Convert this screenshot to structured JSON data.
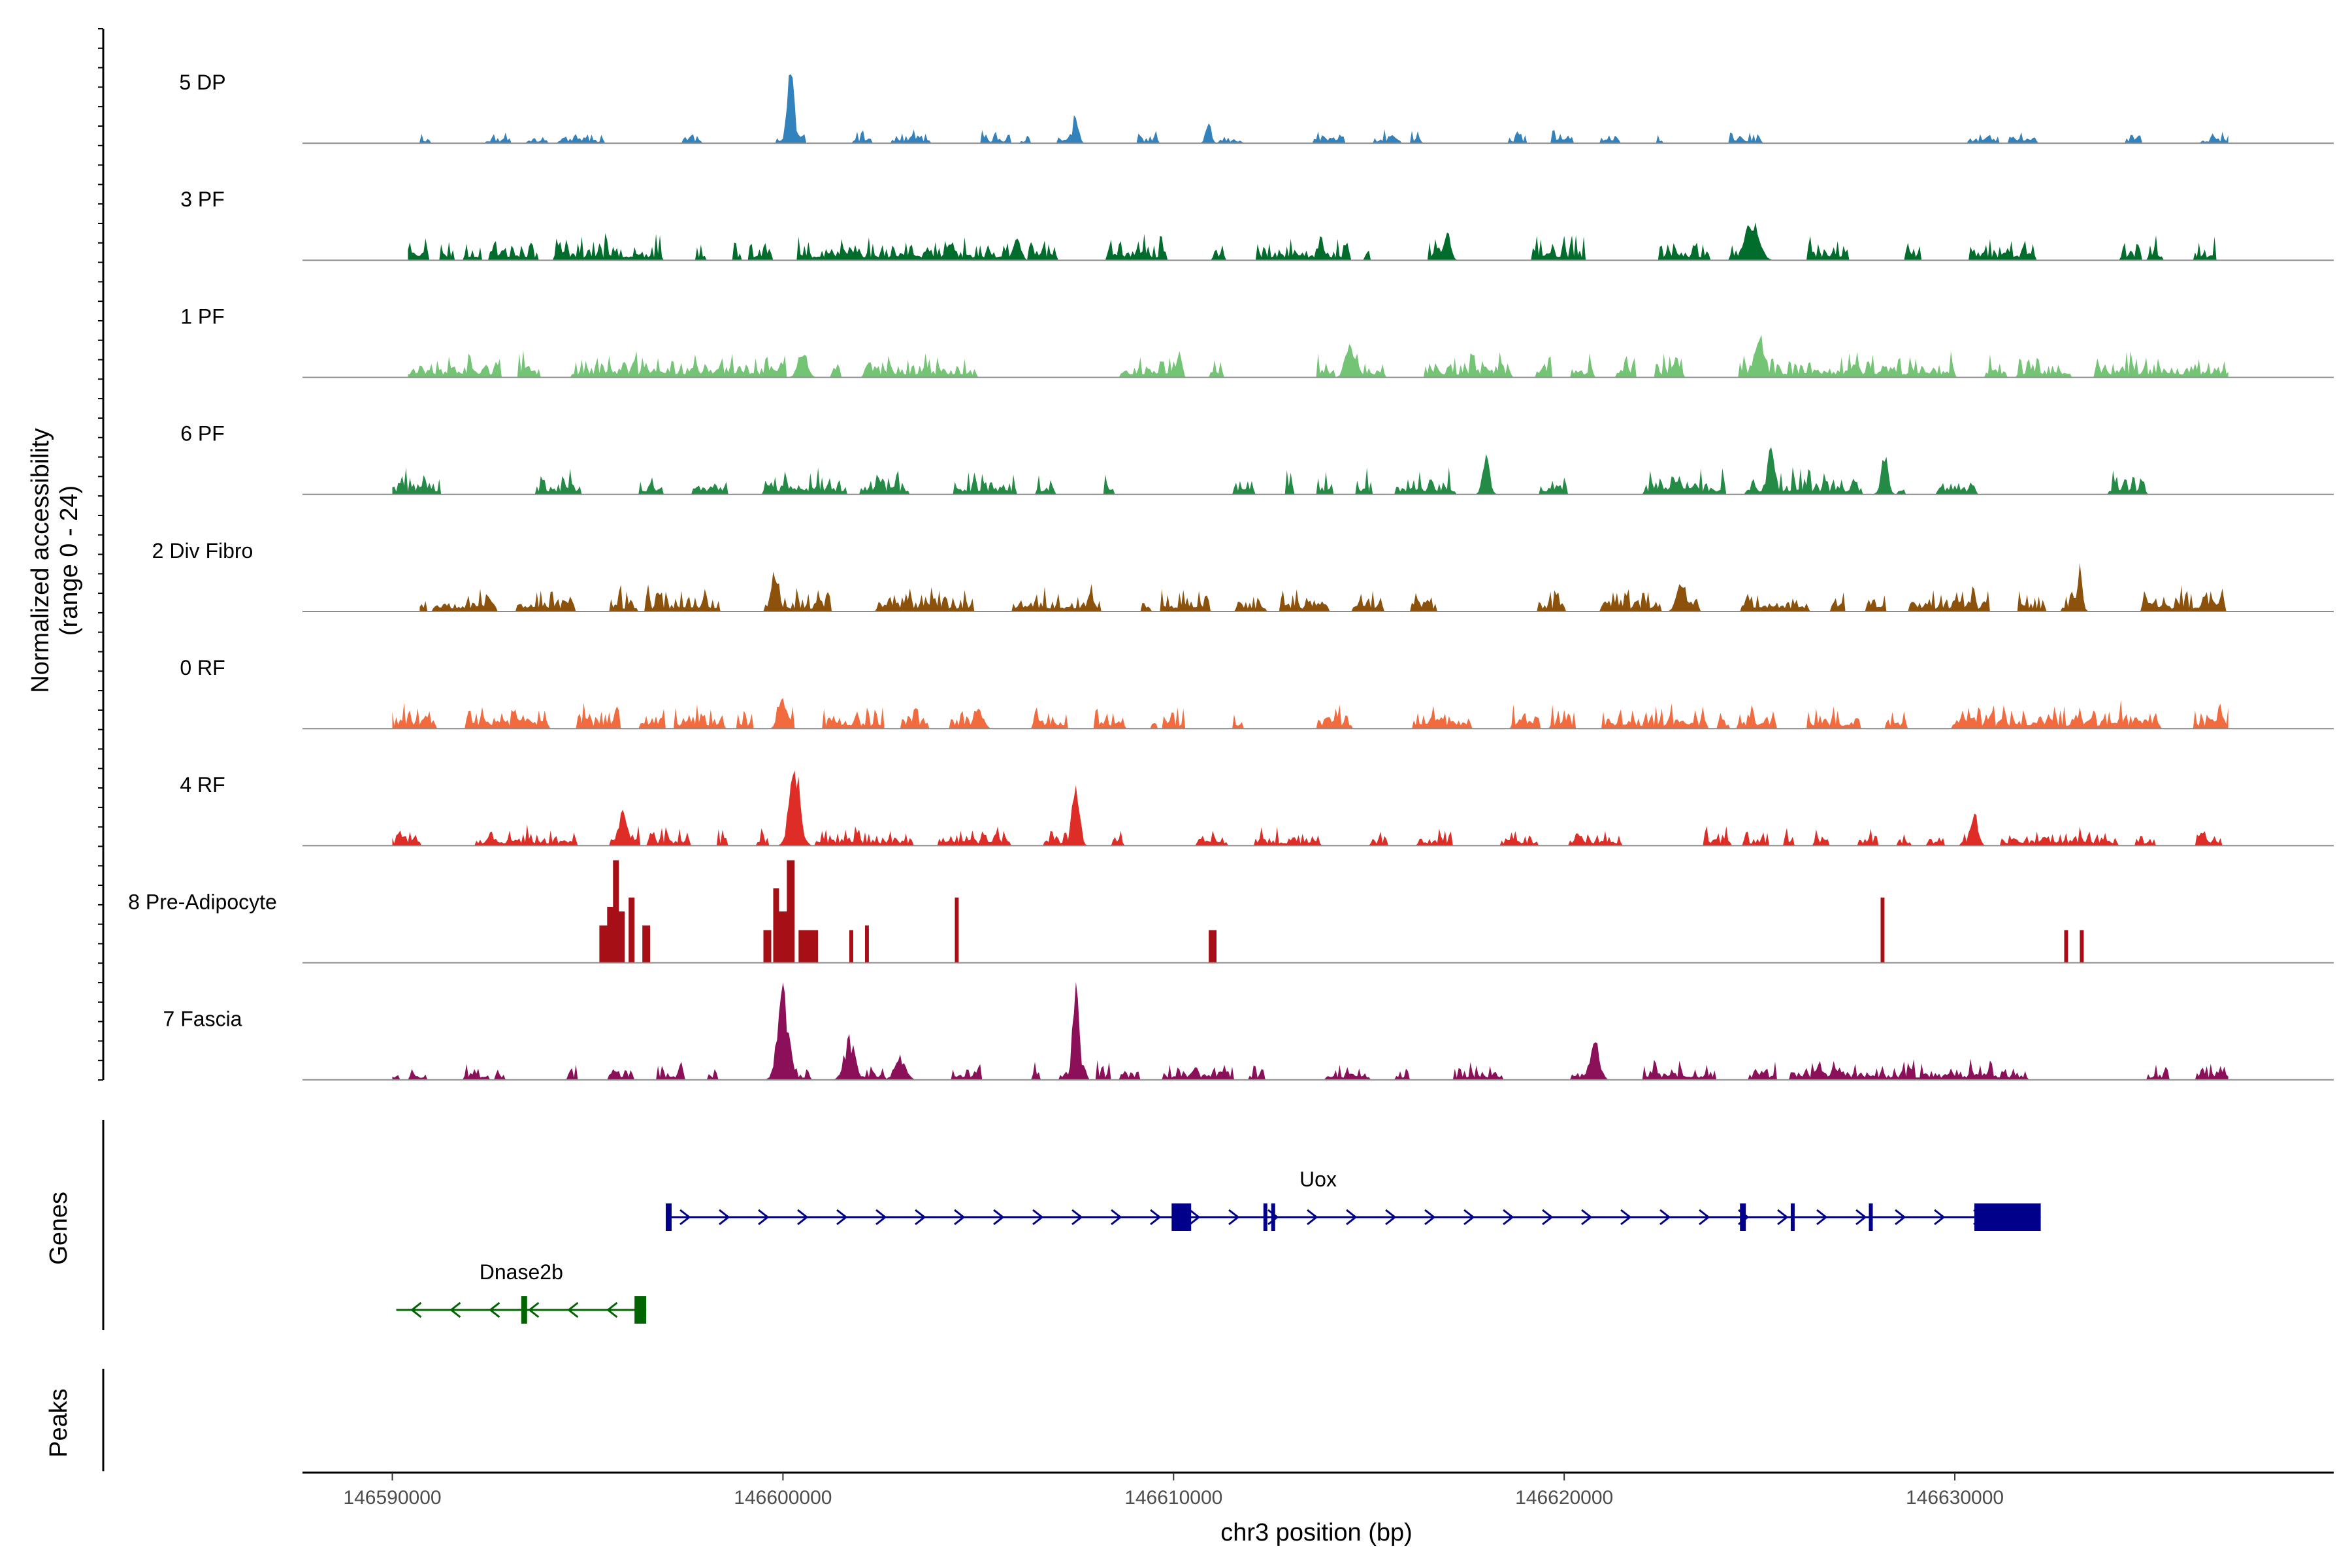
{
  "chart_data": {
    "type": "area",
    "title": "",
    "ylabel_line1": "Normalized accessibility",
    "ylabel_line2": "(range 0 - 24)",
    "xlabel": "chr3 position (bp)",
    "xlim": [
      146587700,
      146639700
    ],
    "ylim": [
      0,
      24
    ],
    "x_ticks": [
      146590000,
      146600000,
      146610000,
      146620000,
      146630000
    ],
    "x_tick_labels": [
      "146590000",
      "146600000",
      "146610000",
      "146620000",
      "146630000"
    ],
    "tracks": [
      {
        "name": "5 DP",
        "color": "#3182BD",
        "x_range": [
          146590700,
          146637000
        ],
        "base": 2,
        "density": 0.35,
        "peaks": [
          [
            146600200,
            22,
            180
          ],
          [
            146607500,
            8,
            150
          ],
          [
            146610900,
            6,
            150
          ]
        ],
        "seed": 11
      },
      {
        "name": "3 PF",
        "color": "#006D2C",
        "x_range": [
          146590400,
          146637000
        ],
        "base": 4,
        "density": 0.55,
        "peaks": [
          [
            146624800,
            10,
            400
          ],
          [
            146617000,
            8,
            200
          ],
          [
            146606000,
            6,
            200
          ]
        ],
        "seed": 23
      },
      {
        "name": "1 PF",
        "color": "#74C476",
        "x_range": [
          146590400,
          146637000
        ],
        "base": 4,
        "density": 0.7,
        "peaks": [
          [
            146625000,
            10,
            300
          ],
          [
            146614500,
            8,
            250
          ],
          [
            146600500,
            7,
            250
          ]
        ],
        "seed": 37
      },
      {
        "name": "6 PF",
        "color": "#238B45",
        "x_range": [
          146590000,
          146637000
        ],
        "base": 4,
        "density": 0.5,
        "peaks": [
          [
            146625300,
            12,
            200
          ],
          [
            146628200,
            10,
            200
          ],
          [
            146618000,
            9,
            200
          ]
        ],
        "seed": 41
      },
      {
        "name": "2 Div Fibro",
        "color": "#8C510A",
        "x_range": [
          146590700,
          146637000
        ],
        "base": 4,
        "density": 0.55,
        "peaks": [
          [
            146599800,
            12,
            200
          ],
          [
            146633200,
            12,
            150
          ],
          [
            146623000,
            9,
            250
          ]
        ],
        "seed": 53
      },
      {
        "name": "0 RF",
        "color": "#F16B3F",
        "x_range": [
          146590000,
          146637000
        ],
        "base": 4,
        "density": 0.65,
        "peaks": [
          [
            146600000,
            7,
            250
          ],
          [
            146605000,
            6,
            250
          ]
        ],
        "seed": 61
      },
      {
        "name": "4 RF",
        "color": "#DE2D26",
        "x_range": [
          146590000,
          146637000
        ],
        "base": 3,
        "density": 0.5,
        "peaks": [
          [
            146600300,
            20,
            300
          ],
          [
            146607500,
            18,
            200
          ],
          [
            146595900,
            9,
            250
          ],
          [
            146630500,
            8,
            200
          ]
        ],
        "seed": 73
      },
      {
        "name": "8 Pre-Adipocyte",
        "color": "#A50F15",
        "x_range": [
          146595000,
          146634000
        ],
        "base": 0,
        "density": 0,
        "blocks": [
          [
            146595300,
            146595500,
            8
          ],
          [
            146595500,
            146595650,
            12
          ],
          [
            146595650,
            146595800,
            22
          ],
          [
            146595800,
            146595950,
            11
          ],
          [
            146596050,
            146596200,
            14
          ],
          [
            146596400,
            146596600,
            8
          ],
          [
            146599500,
            146599700,
            7
          ],
          [
            146599750,
            146599900,
            16
          ],
          [
            146599900,
            146600100,
            11
          ],
          [
            146600100,
            146600300,
            22
          ],
          [
            146600400,
            146600900,
            7
          ],
          [
            146601700,
            146601800,
            7
          ],
          [
            146602100,
            146602200,
            8
          ],
          [
            146604400,
            146604500,
            14
          ],
          [
            146610900,
            146611100,
            7
          ],
          [
            146628100,
            146628200,
            14
          ],
          [
            146632800,
            146632900,
            7
          ],
          [
            146633200,
            146633300,
            7
          ]
        ],
        "seed": 83
      },
      {
        "name": "7 Fascia",
        "color": "#8C0F5A",
        "x_range": [
          146590000,
          146637000
        ],
        "base": 3,
        "density": 0.5,
        "peaks": [
          [
            146600000,
            22,
            300
          ],
          [
            146607500,
            24,
            180
          ],
          [
            146601700,
            10,
            300
          ],
          [
            146620800,
            9,
            250
          ],
          [
            146603000,
            6,
            300
          ]
        ],
        "seed": 97
      }
    ],
    "genes_label": "Genes",
    "peaks_label": "Peaks",
    "genes": [
      {
        "name": "Uox",
        "color": "#00008B",
        "strand": "+",
        "start": 146597000,
        "end": 146632200,
        "exons": [
          [
            146597000,
            146597150
          ],
          [
            146609950,
            146610450
          ],
          [
            146612300,
            146612400
          ],
          [
            146612500,
            146612560
          ],
          [
            146624500,
            146624650
          ],
          [
            146625800,
            146625900
          ],
          [
            146627800,
            146627870
          ],
          [
            146630500,
            146632200
          ]
        ]
      },
      {
        "name": "Dnase2b",
        "color": "#006400",
        "strand": "-",
        "start": 146590100,
        "end": 146596500,
        "exons": [
          [
            146593300,
            146593450
          ],
          [
            146596200,
            146596500
          ]
        ]
      }
    ]
  }
}
